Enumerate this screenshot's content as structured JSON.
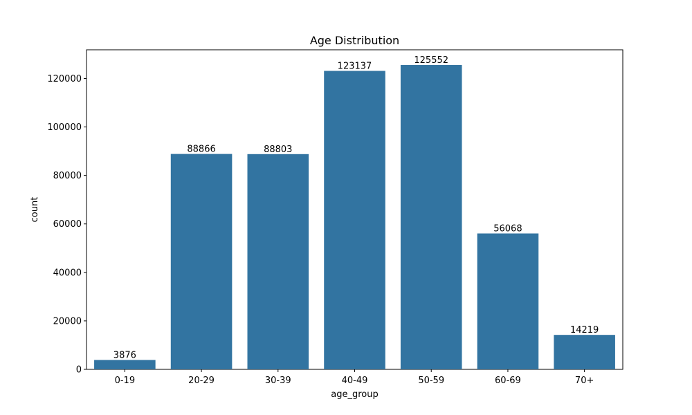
{
  "chart_data": {
    "type": "bar",
    "title": "Age Distribution",
    "xlabel": "age_group",
    "ylabel": "count",
    "categories": [
      "0-19",
      "20-29",
      "30-39",
      "40-49",
      "50-59",
      "60-69",
      "70+"
    ],
    "values": [
      3876,
      88866,
      88803,
      123137,
      125552,
      56068,
      14219
    ],
    "data_labels": [
      "3876",
      "88866",
      "88803",
      "123137",
      "125552",
      "56068",
      "14219"
    ],
    "ylim": [
      0,
      131836
    ],
    "yticks": [
      0,
      20000,
      40000,
      60000,
      80000,
      100000,
      120000
    ],
    "ytick_labels": [
      "0",
      "20000",
      "40000",
      "60000",
      "80000",
      "100000",
      "120000"
    ],
    "bar_color": "#3274a1",
    "grid": false,
    "legend": "none"
  }
}
